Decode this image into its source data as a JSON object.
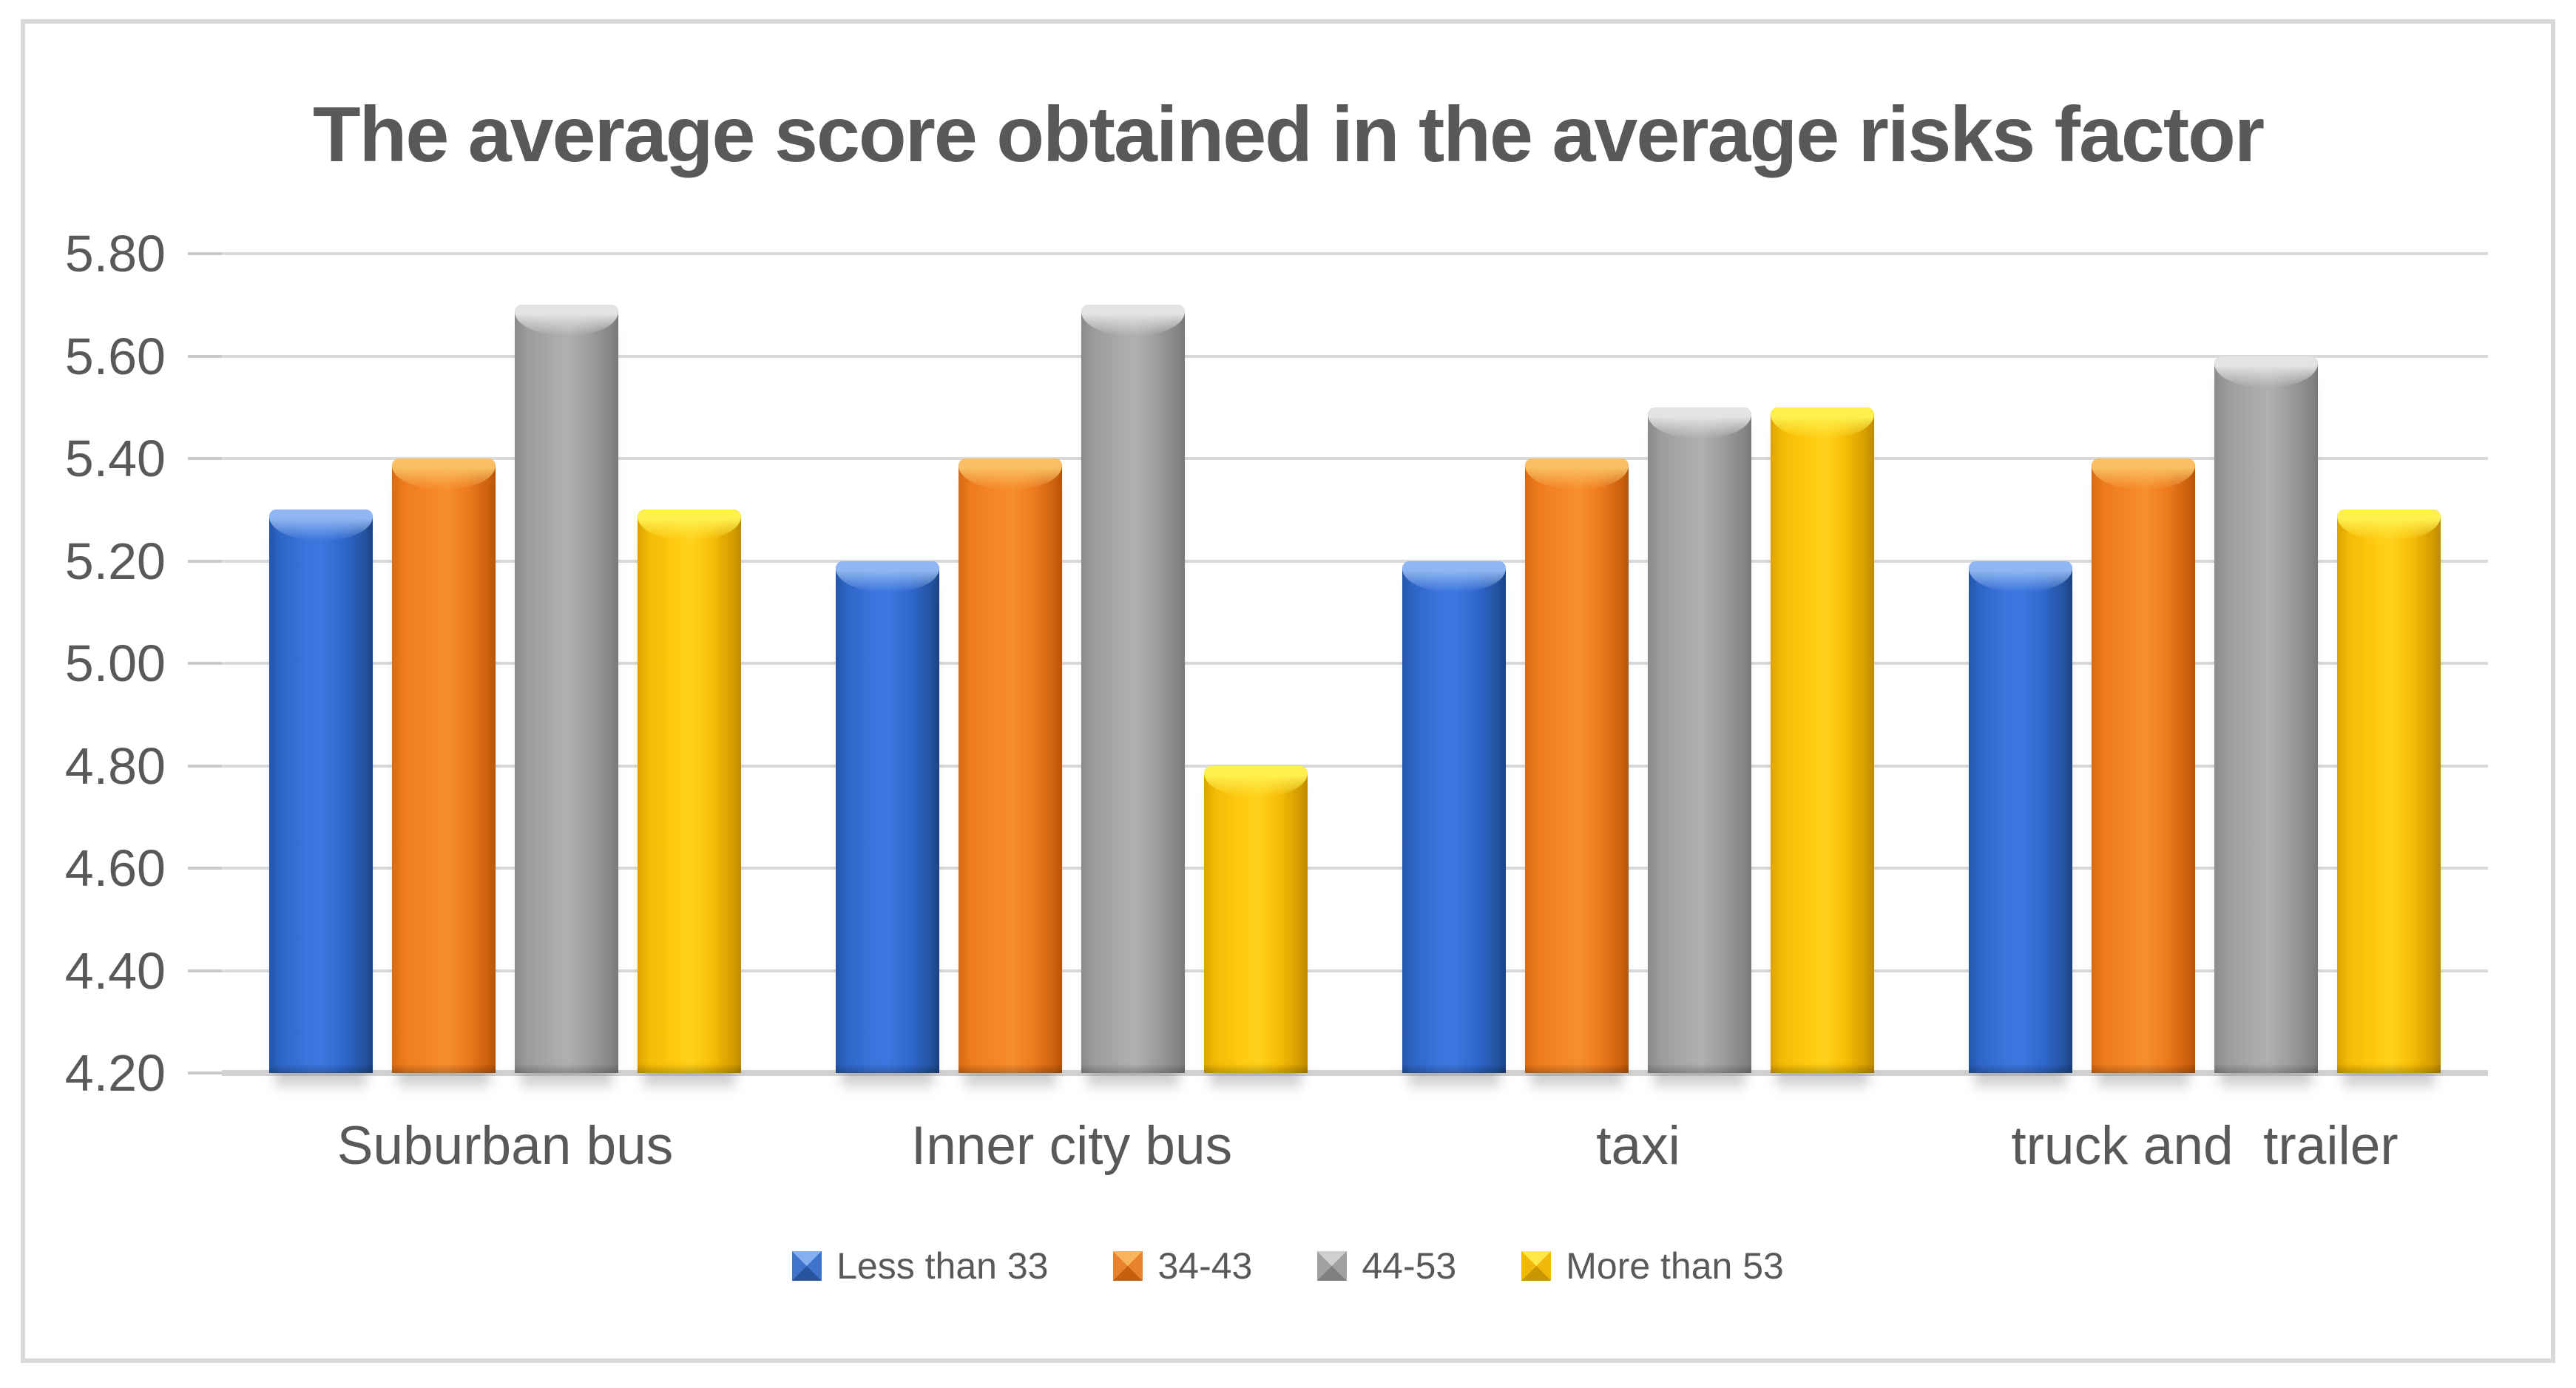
{
  "chart_data": {
    "type": "bar",
    "title": "The average score obtained in the average risks factor",
    "categories": [
      "Suburban bus",
      "Inner city bus",
      "taxi",
      "truck and  trailer"
    ],
    "series": [
      {
        "name": "Less than 33",
        "color": "#2F6ACE",
        "values": [
          5.3,
          5.2,
          5.2,
          5.2
        ]
      },
      {
        "name": "34-43",
        "color": "#EE7C1F",
        "values": [
          5.4,
          5.4,
          5.4,
          5.4
        ]
      },
      {
        "name": "44-53",
        "color": "#9E9E9E",
        "values": [
          5.7,
          5.7,
          5.5,
          5.6
        ]
      },
      {
        "name": "More than 53",
        "color": "#FDC10A",
        "values": [
          5.3,
          4.8,
          5.5,
          5.3
        ]
      }
    ],
    "xlabel": "",
    "ylabel": "",
    "ylim": [
      4.2,
      5.8
    ],
    "ytick_step": 0.2,
    "ytick_labels": [
      "5.80",
      "5.60",
      "5.40",
      "5.20",
      "5.00",
      "4.80",
      "4.60",
      "4.40",
      "4.20"
    ],
    "grid": true,
    "legend_position": "bottom",
    "colors": {
      "text": "#595959",
      "gridline": "#D9D9D9",
      "axis_line": "#D2D2D2",
      "frame_border": "#D9D9D9",
      "background": "#FFFFFF"
    }
  }
}
